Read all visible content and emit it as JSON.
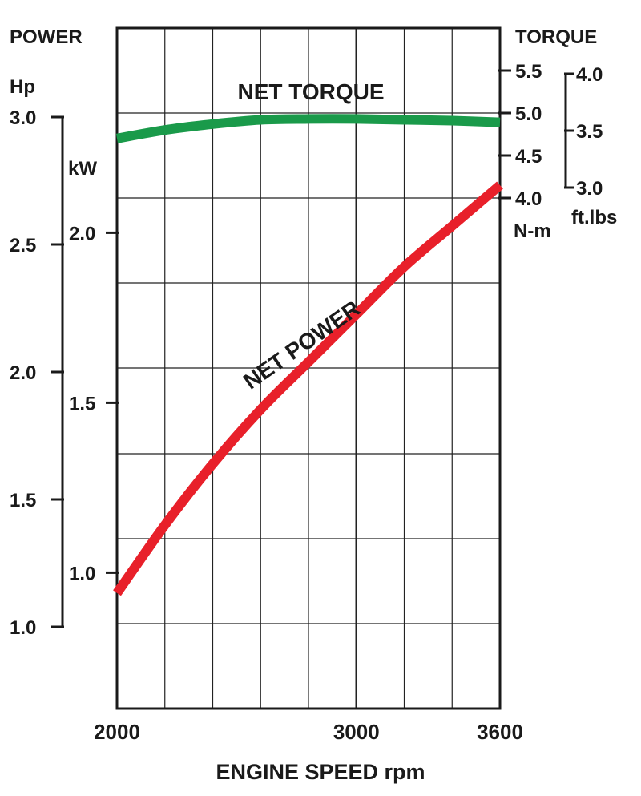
{
  "chart_data": {
    "type": "line",
    "title": "",
    "xlabel": "ENGINE SPEED rpm",
    "xlim": [
      2000,
      3600
    ],
    "x_ticks": [
      2000,
      3000,
      3600
    ],
    "x": [
      2000,
      2200,
      2400,
      2600,
      2800,
      3000,
      3200,
      3400,
      3600
    ],
    "axes": {
      "power_title": "POWER",
      "hp_unit": "Hp",
      "kw_unit": "kW",
      "torque_title": "TORQUE",
      "nm_unit": "N-m",
      "ftlbs_unit": "ft.lbs",
      "hp_ticks": [
        "3.0",
        "2.5",
        "2.0",
        "1.5",
        "1.0"
      ],
      "hp_values": [
        3.0,
        2.5,
        2.0,
        1.5,
        1.0
      ],
      "kw_ticks": [
        "2.0",
        "1.5",
        "1.0"
      ],
      "kw_values": [
        2.0,
        1.5,
        1.0
      ],
      "nm_ticks": [
        "5.5",
        "5.0",
        "4.5",
        "4.0"
      ],
      "nm_values": [
        5.5,
        5.0,
        4.5,
        4.0
      ],
      "ftlbs_ticks": [
        "4.0",
        "3.5",
        "3.0"
      ],
      "ftlbs_values": [
        4.0,
        3.5,
        3.0
      ],
      "x_tick_labels": [
        "2000",
        "3000",
        "3600"
      ]
    },
    "series": [
      {
        "name": "NET TORQUE",
        "axis": "N-m",
        "color": "#1a9a4a",
        "values": [
          4.7,
          4.8,
          4.87,
          4.92,
          4.93,
          4.93,
          4.92,
          4.91,
          4.89
        ]
      },
      {
        "name": "NET POWER",
        "axis": "kW",
        "color": "#e8202a",
        "values": [
          0.94,
          1.14,
          1.32,
          1.48,
          1.62,
          1.76,
          1.9,
          2.02,
          2.14
        ]
      }
    ],
    "grid": true
  }
}
